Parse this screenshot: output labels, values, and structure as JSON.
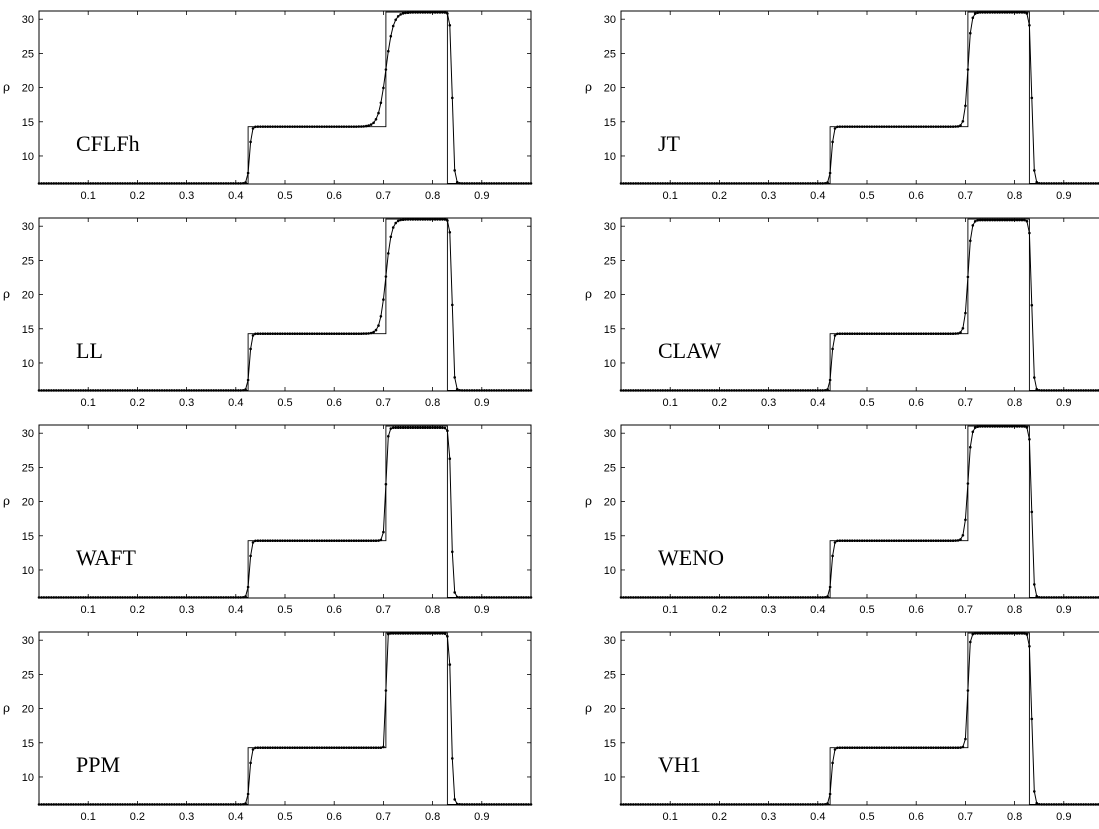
{
  "figure": {
    "ylabel": "ρ",
    "xticks": [
      0.1,
      0.2,
      0.3,
      0.4,
      0.5,
      0.6,
      0.7,
      0.8,
      0.9
    ],
    "yticks": [
      10,
      15,
      20,
      25,
      30
    ],
    "xlim": [
      0.0,
      1.0
    ],
    "ylim": [
      5.9,
      31.2
    ],
    "layout": "4 rows x 2 columns"
  },
  "chart_data": [
    {
      "type": "line",
      "method": "CFLFh",
      "shock_pos": 0.84,
      "plateau_high": 31.0,
      "contact_width": 0.045,
      "grid": false,
      "series": [
        {
          "values": "exact solution (piecewise constant)"
        },
        {
          "values": "numerical solution (dotted)"
        }
      ]
    },
    {
      "type": "line",
      "method": "JT",
      "shock_pos": 0.835,
      "plateau_high": 31.0,
      "contact_width": 0.02,
      "grid": false,
      "series": [
        {
          "values": "exact"
        },
        {
          "values": "numerical"
        }
      ]
    },
    {
      "type": "line",
      "method": "LL",
      "shock_pos": 0.84,
      "plateau_high": 31.0,
      "contact_width": 0.035,
      "grid": false,
      "series": [
        {
          "values": "exact"
        },
        {
          "values": "numerical"
        }
      ]
    },
    {
      "type": "line",
      "method": "CLAW",
      "shock_pos": 0.835,
      "plateau_high": 30.9,
      "contact_width": 0.02,
      "grid": false,
      "series": [
        {
          "values": "exact"
        },
        {
          "values": "numerical"
        }
      ]
    },
    {
      "type": "line",
      "method": "WAFT",
      "shock_pos": 0.838,
      "plateau_high": 30.8,
      "contact_width": 0.012,
      "grid": false,
      "series": [
        {
          "values": "exact"
        },
        {
          "values": "numerical"
        }
      ]
    },
    {
      "type": "line",
      "method": "WENO",
      "shock_pos": 0.835,
      "plateau_high": 31.0,
      "contact_width": 0.02,
      "grid": false,
      "series": [
        {
          "values": "exact"
        },
        {
          "values": "numerical"
        }
      ]
    },
    {
      "type": "line",
      "method": "PPM",
      "shock_pos": 0.838,
      "plateau_high": 31.0,
      "contact_width": 0.006,
      "grid": false,
      "series": [
        {
          "values": "exact"
        },
        {
          "values": "numerical"
        }
      ]
    },
    {
      "type": "line",
      "method": "VH1",
      "shock_pos": 0.835,
      "plateau_high": 31.0,
      "contact_width": 0.012,
      "grid": false,
      "series": [
        {
          "values": "exact"
        },
        {
          "values": "numerical"
        }
      ]
    }
  ],
  "exact_solution": {
    "x": [
      0.0,
      0.425,
      0.425,
      0.705,
      0.705,
      0.83,
      0.83,
      1.0
    ],
    "y": [
      5.99,
      5.99,
      14.28,
      14.28,
      31.04,
      31.04,
      5.99,
      5.99
    ]
  }
}
